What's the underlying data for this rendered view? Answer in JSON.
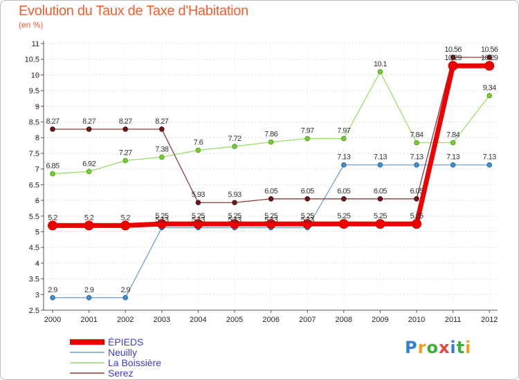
{
  "title": "Evolution du Taux de Taxe d'Habitation",
  "subtitle": "(en %)",
  "logo": {
    "text": "Proxiti",
    "colors": [
      "#2e7fd8",
      "#f0a020",
      "#3ab03a",
      "#e8483a",
      "#2e7fd8",
      "#3ab03a",
      "#f0a020"
    ]
  },
  "chart_data": {
    "type": "line",
    "title": "Evolution du Taux de Taxe d'Habitation",
    "subtitle": "(en %)",
    "xlabel": "",
    "ylabel": "",
    "x": [
      "2000",
      "2001",
      "2002",
      "2003",
      "2004",
      "2005",
      "2006",
      "2007",
      "2008",
      "2009",
      "2010",
      "2011",
      "2012"
    ],
    "ylim": [
      2.5,
      11
    ],
    "yticks": [
      "2.5",
      "3",
      "3.5",
      "4",
      "4.5",
      "5",
      "5.5",
      "6",
      "6.5",
      "7",
      "7.5",
      "8",
      "8.5",
      "9",
      "9.5",
      "10",
      "10.5",
      "11"
    ],
    "grid": "horizontal dashed",
    "legend_position": "bottom-left",
    "series": [
      {
        "name": "ÉPIEDS",
        "color": "#ee0000",
        "values": [
          5.2,
          5.2,
          5.2,
          5.25,
          5.25,
          5.25,
          5.25,
          5.25,
          5.25,
          5.25,
          5.25,
          10.29,
          10.29
        ],
        "labels": [
          "5.2",
          "5.2",
          "5.2",
          "5.25",
          "5.25",
          "5.25",
          "5.25",
          "5.25",
          "5.25",
          "5.25",
          "5.25",
          "10.29",
          "10.29"
        ]
      },
      {
        "name": "Neuilly",
        "color": "#6fa3d0",
        "values": [
          2.9,
          2.9,
          2.9,
          5.13,
          5.13,
          5.13,
          5.13,
          5.13,
          7.13,
          7.13,
          7.13,
          7.13,
          7.13
        ],
        "labels": [
          "2.9",
          "2.9",
          "2.9",
          "5.13",
          "5.13",
          "5.13",
          "5.13",
          "5.13",
          "7.13",
          "7.13",
          "7.13",
          "7.13",
          "7.13"
        ]
      },
      {
        "name": "La Boissière",
        "color": "#99dd66",
        "values": [
          6.85,
          6.92,
          7.27,
          7.38,
          7.6,
          7.72,
          7.86,
          7.97,
          7.97,
          10.1,
          7.84,
          7.84,
          9.34
        ],
        "labels": [
          "6.85",
          "6.92",
          "7.27",
          "7.38",
          "7.6",
          "7.72",
          "7.86",
          "7.97",
          "7.97",
          "10.1",
          "7.84",
          "7.84",
          "9.34"
        ]
      },
      {
        "name": "Serez",
        "color": "#8b3a3a",
        "values": [
          8.27,
          8.27,
          8.27,
          8.27,
          5.93,
          5.93,
          6.05,
          6.05,
          6.05,
          6.05,
          6.05,
          10.56,
          10.56
        ],
        "labels": [
          "8.27",
          "8.27",
          "8.27",
          "8.27",
          "5.93",
          "5.93",
          "6.05",
          "6.05",
          "6.05",
          "6.05",
          "6.05",
          "10.56",
          "10.56"
        ]
      }
    ]
  }
}
